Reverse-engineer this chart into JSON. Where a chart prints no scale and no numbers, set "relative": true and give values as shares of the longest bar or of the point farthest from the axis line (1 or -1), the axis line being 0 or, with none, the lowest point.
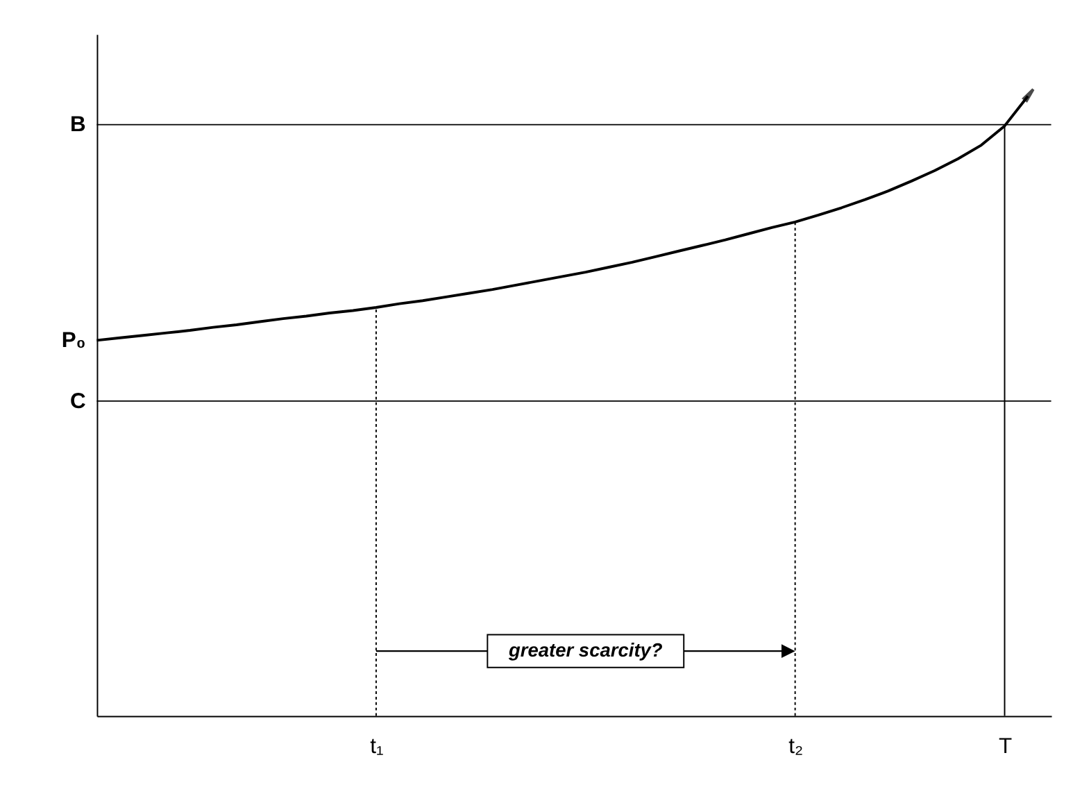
{
  "chart_data": {
    "type": "line",
    "relative": true,
    "categories": [
      null,
      null,
      null,
      null,
      null,
      null,
      null,
      null,
      null,
      null,
      null,
      null,
      "t₁",
      null,
      null,
      null,
      null,
      null,
      null,
      null,
      null,
      null,
      null,
      null,
      null,
      null,
      null,
      null,
      null,
      null,
      "t₂",
      null,
      null,
      null,
      null,
      null,
      null,
      null,
      null,
      "T",
      null
    ],
    "series": [
      {
        "color": "#000000",
        "values": [
          0.606,
          0.61,
          0.614,
          0.618,
          0.622,
          0.627,
          0.631,
          0.636,
          0.641,
          0.645,
          0.65,
          0.654,
          0.659,
          0.665,
          0.67,
          0.676,
          0.682,
          0.688,
          0.695,
          0.702,
          0.709,
          0.716,
          0.724,
          0.732,
          0.741,
          0.75,
          0.759,
          0.768,
          0.778,
          0.788,
          0.797,
          0.808,
          0.82,
          0.833,
          0.847,
          0.863,
          0.88,
          0.899,
          0.921,
          0.952,
          1
        ]
      }
    ],
    "ref_lines": [
      {
        "axis": "y",
        "value": 0.954,
        "label": "B",
        "color": "#000000",
        "line_style": "solid"
      },
      {
        "axis": "y",
        "value": 0.508,
        "label": "C",
        "color": "#000000",
        "line_style": "solid"
      },
      {
        "axis": "x",
        "value": "t₁",
        "color": "#000000",
        "line_style": "dotted"
      },
      {
        "axis": "x",
        "value": "t₂",
        "color": "#000000",
        "line_style": "dotted"
      },
      {
        "axis": "x",
        "value": "T",
        "color": "#000000",
        "line_style": "solid"
      }
    ],
    "annotations": [
      "P₀",
      "greater scarcity?"
    ],
    "grid": false,
    "marker": "none",
    "line_style": "solid"
  }
}
